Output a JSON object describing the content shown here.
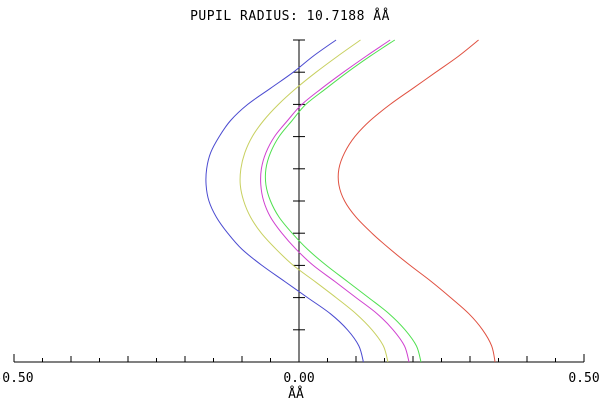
{
  "chart_data": {
    "type": "line",
    "title": "PUPIL RADIUS: 10.7188  ÅÅ",
    "xlabel": "ÅÅ",
    "ylabel": "",
    "xlim": [
      -0.5,
      0.5
    ],
    "ylim": [
      0,
      1
    ],
    "x_tick_labels": [
      "-0.50",
      "0.00",
      "0.50"
    ],
    "x_tick_values": [
      -0.5,
      0.0,
      0.5
    ],
    "y_minor_ticks": [
      0.1,
      0.2,
      0.3,
      0.4,
      0.5,
      0.6,
      0.7,
      0.8,
      0.9,
      1.0
    ],
    "grid": false,
    "legend": "none",
    "series": [
      {
        "color": "#4a4ad0",
        "points": [
          [
            0.113,
            0.0
          ],
          [
            0.105,
            0.05
          ],
          [
            0.085,
            0.1
          ],
          [
            0.055,
            0.15
          ],
          [
            0.015,
            0.2
          ],
          [
            -0.025,
            0.25
          ],
          [
            -0.065,
            0.3
          ],
          [
            -0.1,
            0.35
          ],
          [
            -0.125,
            0.4
          ],
          [
            -0.145,
            0.45
          ],
          [
            -0.158,
            0.5
          ],
          [
            -0.163,
            0.55
          ],
          [
            -0.162,
            0.6
          ],
          [
            -0.155,
            0.65
          ],
          [
            -0.14,
            0.7
          ],
          [
            -0.12,
            0.75
          ],
          [
            -0.09,
            0.8
          ],
          [
            -0.05,
            0.85
          ],
          [
            -0.01,
            0.9
          ],
          [
            0.025,
            0.95
          ],
          [
            0.065,
            1.0
          ]
        ]
      },
      {
        "color": "#c8d060",
        "points": [
          [
            0.156,
            0.0
          ],
          [
            0.148,
            0.05
          ],
          [
            0.128,
            0.1
          ],
          [
            0.1,
            0.15
          ],
          [
            0.065,
            0.2
          ],
          [
            0.028,
            0.25
          ],
          [
            -0.01,
            0.3
          ],
          [
            -0.04,
            0.35
          ],
          [
            -0.066,
            0.4
          ],
          [
            -0.085,
            0.45
          ],
          [
            -0.097,
            0.5
          ],
          [
            -0.103,
            0.55
          ],
          [
            -0.102,
            0.6
          ],
          [
            -0.095,
            0.65
          ],
          [
            -0.082,
            0.7
          ],
          [
            -0.062,
            0.75
          ],
          [
            -0.036,
            0.8
          ],
          [
            -0.005,
            0.85
          ],
          [
            0.03,
            0.9
          ],
          [
            0.068,
            0.95
          ],
          [
            0.108,
            1.0
          ]
        ]
      },
      {
        "color": "#d040d0",
        "points": [
          [
            0.193,
            0.0
          ],
          [
            0.185,
            0.05
          ],
          [
            0.165,
            0.1
          ],
          [
            0.137,
            0.15
          ],
          [
            0.1,
            0.2
          ],
          [
            0.063,
            0.25
          ],
          [
            0.025,
            0.3
          ],
          [
            -0.005,
            0.35
          ],
          [
            -0.03,
            0.4
          ],
          [
            -0.05,
            0.45
          ],
          [
            -0.062,
            0.5
          ],
          [
            -0.067,
            0.55
          ],
          [
            -0.066,
            0.6
          ],
          [
            -0.058,
            0.65
          ],
          [
            -0.043,
            0.7
          ],
          [
            -0.02,
            0.75
          ],
          [
            0.005,
            0.8
          ],
          [
            0.04,
            0.85
          ],
          [
            0.078,
            0.9
          ],
          [
            0.118,
            0.95
          ],
          [
            0.16,
            1.0
          ]
        ]
      },
      {
        "color": "#50e050",
        "points": [
          [
            0.214,
            0.0
          ],
          [
            0.206,
            0.05
          ],
          [
            0.186,
            0.1
          ],
          [
            0.158,
            0.15
          ],
          [
            0.122,
            0.2
          ],
          [
            0.085,
            0.25
          ],
          [
            0.048,
            0.3
          ],
          [
            0.015,
            0.35
          ],
          [
            -0.012,
            0.4
          ],
          [
            -0.035,
            0.45
          ],
          [
            -0.05,
            0.5
          ],
          [
            -0.058,
            0.55
          ],
          [
            -0.058,
            0.6
          ],
          [
            -0.05,
            0.65
          ],
          [
            -0.035,
            0.7
          ],
          [
            -0.012,
            0.75
          ],
          [
            0.012,
            0.8
          ],
          [
            0.048,
            0.85
          ],
          [
            0.085,
            0.9
          ],
          [
            0.125,
            0.95
          ],
          [
            0.168,
            1.0
          ]
        ]
      },
      {
        "color": "#e05040",
        "points": [
          [
            0.344,
            0.0
          ],
          [
            0.338,
            0.05
          ],
          [
            0.322,
            0.1
          ],
          [
            0.298,
            0.15
          ],
          [
            0.266,
            0.2
          ],
          [
            0.232,
            0.25
          ],
          [
            0.195,
            0.3
          ],
          [
            0.16,
            0.35
          ],
          [
            0.128,
            0.4
          ],
          [
            0.1,
            0.45
          ],
          [
            0.08,
            0.5
          ],
          [
            0.07,
            0.55
          ],
          [
            0.07,
            0.6
          ],
          [
            0.08,
            0.65
          ],
          [
            0.098,
            0.7
          ],
          [
            0.125,
            0.75
          ],
          [
            0.16,
            0.8
          ],
          [
            0.2,
            0.85
          ],
          [
            0.24,
            0.9
          ],
          [
            0.28,
            0.95
          ],
          [
            0.315,
            1.0
          ]
        ]
      }
    ]
  }
}
